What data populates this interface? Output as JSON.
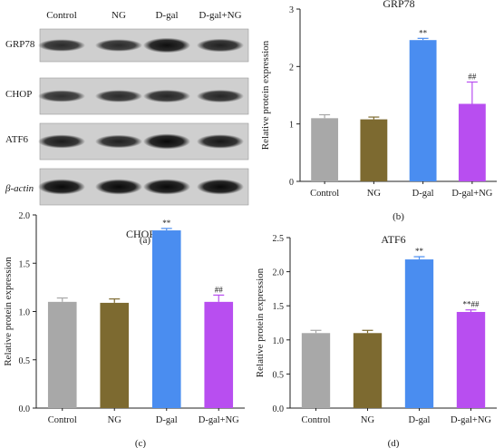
{
  "blot": {
    "panel_label": "(a)",
    "lane_labels": [
      "Control",
      "NG",
      "D-gal",
      "D-gal+NG"
    ],
    "row_labels": [
      {
        "name": "GRP78",
        "italic": false
      },
      {
        "name": "CHOP",
        "italic": false
      },
      {
        "name": "ATF6",
        "italic": false
      },
      {
        "name": "β-actin",
        "italic": true
      }
    ],
    "band_intensity": [
      [
        0.55,
        0.55,
        0.85,
        0.65
      ],
      [
        0.5,
        0.55,
        0.6,
        0.6
      ],
      [
        0.7,
        0.65,
        0.9,
        0.75
      ],
      [
        0.9,
        0.9,
        0.9,
        0.9
      ]
    ]
  },
  "chart_data": [
    {
      "type": "bar",
      "panel_label": "(b)",
      "title": "GRP78",
      "ylabel": "Relative protein expression",
      "xlabel": "",
      "categories": [
        "Control",
        "NG",
        "D-gal",
        "D-gal+NG"
      ],
      "values": [
        1.1,
        1.08,
        2.46,
        1.35
      ],
      "errors": [
        0.06,
        0.04,
        0.03,
        0.38
      ],
      "annotations": [
        "",
        "",
        "**",
        "##"
      ],
      "ylim": [
        0,
        3
      ],
      "yticks": [
        "0",
        "1",
        "2",
        "3"
      ],
      "colors": [
        "#a8a8a8",
        "#7d6a30",
        "#4a8df0",
        "#b84ef0"
      ]
    },
    {
      "type": "bar",
      "panel_label": "(c)",
      "title": "CHOP",
      "ylabel": "Relative protein expression",
      "xlabel": "",
      "categories": [
        "Control",
        "NG",
        "D-gal",
        "D-gal+NG"
      ],
      "values": [
        1.1,
        1.09,
        1.84,
        1.1
      ],
      "errors": [
        0.04,
        0.04,
        0.02,
        0.07
      ],
      "annotations": [
        "",
        "",
        "**",
        "##"
      ],
      "ylim": [
        0,
        2
      ],
      "yticks": [
        "0.0",
        "0.5",
        "1.0",
        "1.5",
        "2.0"
      ],
      "colors": [
        "#a8a8a8",
        "#7d6a30",
        "#4a8df0",
        "#b84ef0"
      ]
    },
    {
      "type": "bar",
      "panel_label": "(d)",
      "title": "ATF6",
      "ylabel": "Relative protein expression",
      "xlabel": "",
      "categories": [
        "Control",
        "NG",
        "D-gal",
        "D-gal+NG"
      ],
      "values": [
        1.1,
        1.1,
        2.18,
        1.41
      ],
      "errors": [
        0.04,
        0.04,
        0.04,
        0.03
      ],
      "annotations": [
        "",
        "",
        "**",
        "**##"
      ],
      "ylim": [
        0,
        2.5
      ],
      "yticks": [
        "0.0",
        "0.5",
        "1.0",
        "1.5",
        "2.0",
        "2.5"
      ],
      "colors": [
        "#a8a8a8",
        "#7d6a30",
        "#4a8df0",
        "#b84ef0"
      ]
    }
  ]
}
